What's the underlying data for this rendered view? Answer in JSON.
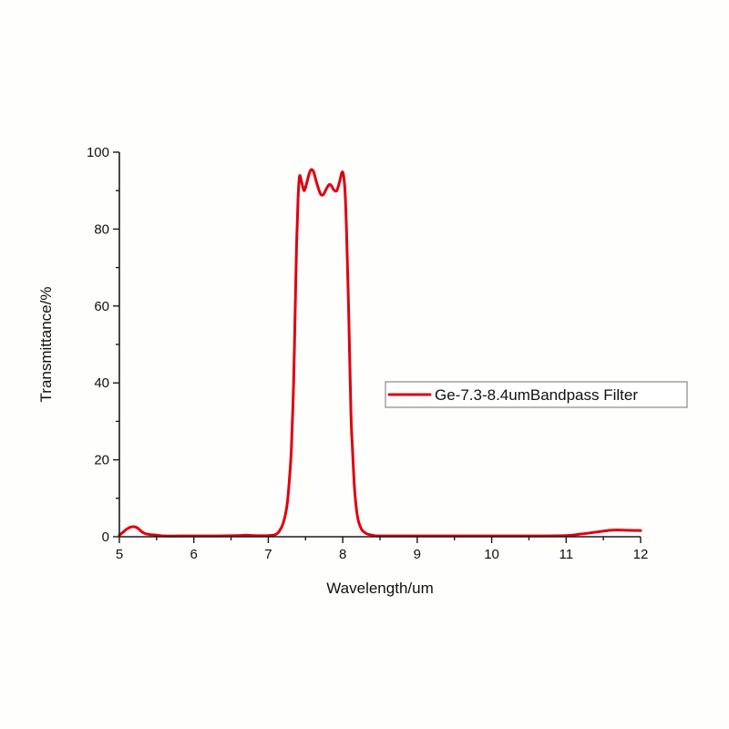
{
  "chart_data": {
    "type": "line",
    "title": "",
    "xlabel": "Wavelength/um",
    "ylabel": "Transmittance/%",
    "xlim": [
      5,
      12
    ],
    "ylim": [
      0,
      100
    ],
    "x_ticks": [
      5,
      6,
      7,
      8,
      9,
      10,
      11,
      12
    ],
    "y_ticks": [
      0,
      20,
      40,
      60,
      80,
      100
    ],
    "x_minor_ticks": [
      5.5,
      6.5,
      7.5,
      8.5,
      9.5,
      10.5,
      11.5
    ],
    "y_minor_ticks": [
      10,
      30,
      50,
      70,
      90
    ],
    "grid": false,
    "legend_position": "right-middle",
    "series": [
      {
        "name": "Ge-7.3-8.4umBandpass Filter",
        "color": "#e0000f",
        "x": [
          5.0,
          5.05,
          5.1,
          5.15,
          5.2,
          5.25,
          5.3,
          5.35,
          5.4,
          5.5,
          5.6,
          5.8,
          6.0,
          6.3,
          6.6,
          6.7,
          6.8,
          7.0,
          7.1,
          7.15,
          7.2,
          7.25,
          7.28,
          7.31,
          7.34,
          7.36,
          7.38,
          7.4,
          7.42,
          7.45,
          7.48,
          7.51,
          7.55,
          7.58,
          7.61,
          7.65,
          7.7,
          7.74,
          7.78,
          7.82,
          7.85,
          7.88,
          7.92,
          7.96,
          7.99,
          8.01,
          8.03,
          8.05,
          8.08,
          8.11,
          8.13,
          8.16,
          8.2,
          8.25,
          8.3,
          8.35,
          8.42,
          8.5,
          9.0,
          9.5,
          10.0,
          10.5,
          11.0,
          11.2,
          11.4,
          11.6,
          11.8,
          12.0
        ],
        "values": [
          0.4,
          1.2,
          2.0,
          2.5,
          2.6,
          2.2,
          1.3,
          0.8,
          0.6,
          0.4,
          0.2,
          0.2,
          0.2,
          0.2,
          0.3,
          0.4,
          0.3,
          0.3,
          0.6,
          1.5,
          3.5,
          8.0,
          14.0,
          23.0,
          40.0,
          58.0,
          76.0,
          88.0,
          93.8,
          92.0,
          90.0,
          91.5,
          94.5,
          95.5,
          94.8,
          92.0,
          89.2,
          89.0,
          90.5,
          91.6,
          91.2,
          90.2,
          90.0,
          92.5,
          94.8,
          94.0,
          90.0,
          80.0,
          58.0,
          32.0,
          23.0,
          12.0,
          5.0,
          2.0,
          1.0,
          0.6,
          0.3,
          0.2,
          0.2,
          0.2,
          0.2,
          0.2,
          0.3,
          0.7,
          1.2,
          1.7,
          1.7,
          1.6
        ]
      }
    ]
  }
}
